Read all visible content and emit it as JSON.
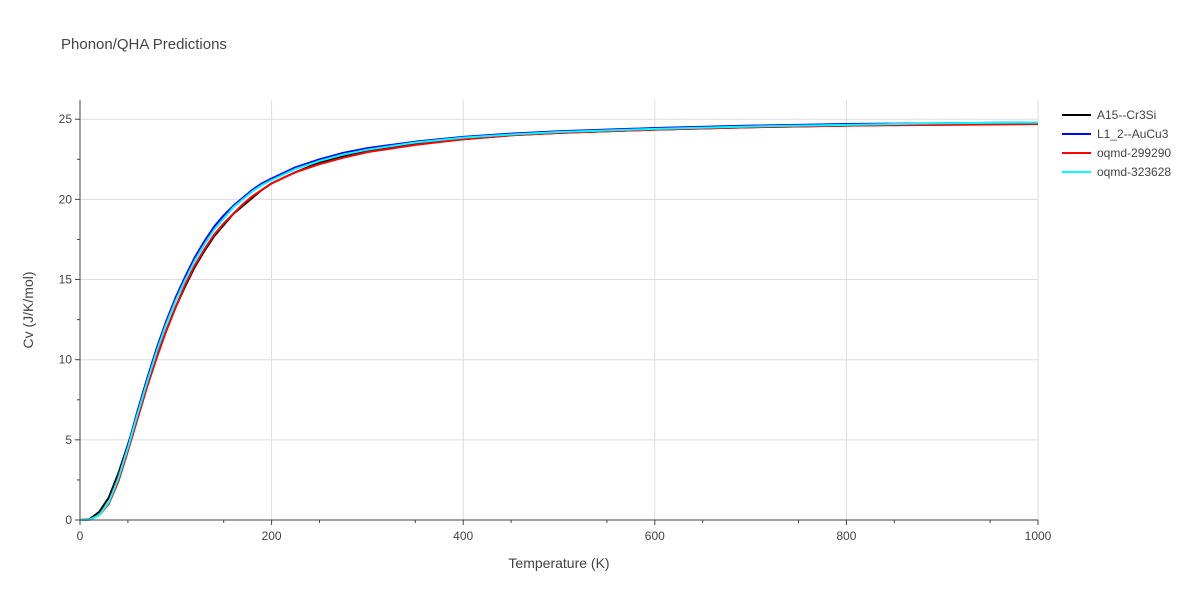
{
  "chart_data": {
    "type": "line",
    "title": "Phonon/QHA Predictions",
    "xlabel": "Temperature (K)",
    "ylabel": "Cv (J/K/mol)",
    "xlim": [
      0,
      1000
    ],
    "ylim": [
      0,
      26.2
    ],
    "x_ticks": [
      0,
      200,
      400,
      600,
      800,
      1000
    ],
    "y_ticks": [
      0,
      5,
      10,
      15,
      20,
      25
    ],
    "grid": true,
    "legend_position": "top-right",
    "series": [
      {
        "name": "A15--Cr3Si",
        "color": "#000000",
        "x": [
          0,
          10,
          20,
          30,
          40,
          50,
          60,
          70,
          80,
          90,
          100,
          110,
          120,
          130,
          140,
          150,
          160,
          170,
          180,
          190,
          200,
          225,
          250,
          275,
          300,
          350,
          400,
          450,
          500,
          600,
          700,
          800,
          900,
          1000
        ],
        "y": [
          0,
          0.05,
          0.5,
          1.4,
          2.9,
          4.7,
          6.6,
          8.5,
          10.2,
          11.8,
          13.3,
          14.6,
          15.8,
          16.8,
          17.7,
          18.4,
          19.1,
          19.6,
          20.1,
          20.6,
          21.0,
          21.7,
          22.3,
          22.7,
          23.0,
          23.45,
          23.75,
          24.0,
          24.15,
          24.35,
          24.5,
          24.6,
          24.7,
          24.75
        ]
      },
      {
        "name": "L1_2--AuCu3",
        "color": "#0000ff",
        "x": [
          0,
          10,
          20,
          30,
          40,
          50,
          60,
          70,
          80,
          90,
          100,
          110,
          120,
          130,
          140,
          150,
          160,
          170,
          180,
          190,
          200,
          225,
          250,
          275,
          300,
          350,
          400,
          450,
          500,
          600,
          700,
          800,
          900,
          1000
        ],
        "y": [
          0,
          0.02,
          0.3,
          1.1,
          2.6,
          4.6,
          6.8,
          8.8,
          10.7,
          12.4,
          13.9,
          15.2,
          16.4,
          17.4,
          18.3,
          19.0,
          19.6,
          20.1,
          20.6,
          21.0,
          21.3,
          22.0,
          22.5,
          22.9,
          23.2,
          23.6,
          23.9,
          24.1,
          24.25,
          24.45,
          24.6,
          24.7,
          24.75,
          24.8
        ]
      },
      {
        "name": "oqmd-299290",
        "color": "#ff0000",
        "x": [
          0,
          10,
          20,
          30,
          40,
          50,
          60,
          70,
          80,
          90,
          100,
          110,
          120,
          130,
          140,
          150,
          160,
          170,
          180,
          190,
          200,
          225,
          250,
          275,
          300,
          350,
          400,
          450,
          500,
          600,
          700,
          800,
          900,
          1000
        ],
        "y": [
          0,
          0.02,
          0.3,
          1.0,
          2.4,
          4.3,
          6.3,
          8.3,
          10.1,
          11.8,
          13.3,
          14.7,
          15.9,
          16.9,
          17.8,
          18.5,
          19.1,
          19.7,
          20.2,
          20.6,
          21.0,
          21.7,
          22.2,
          22.6,
          22.95,
          23.4,
          23.75,
          24.0,
          24.15,
          24.35,
          24.5,
          24.6,
          24.65,
          24.7
        ]
      },
      {
        "name": "oqmd-323628",
        "color": "#00ffff",
        "x": [
          0,
          10,
          20,
          30,
          40,
          50,
          60,
          70,
          80,
          90,
          100,
          110,
          120,
          130,
          140,
          150,
          160,
          170,
          180,
          190,
          200,
          225,
          250,
          275,
          300,
          350,
          400,
          450,
          500,
          600,
          700,
          800,
          900,
          1000
        ],
        "y": [
          0,
          0.02,
          0.3,
          1.1,
          2.6,
          4.5,
          6.6,
          8.6,
          10.5,
          12.2,
          13.7,
          15.0,
          16.2,
          17.2,
          18.1,
          18.8,
          19.5,
          20.0,
          20.5,
          20.9,
          21.2,
          21.9,
          22.4,
          22.8,
          23.1,
          23.55,
          23.85,
          24.05,
          24.2,
          24.4,
          24.55,
          24.65,
          24.75,
          24.8
        ]
      }
    ]
  }
}
